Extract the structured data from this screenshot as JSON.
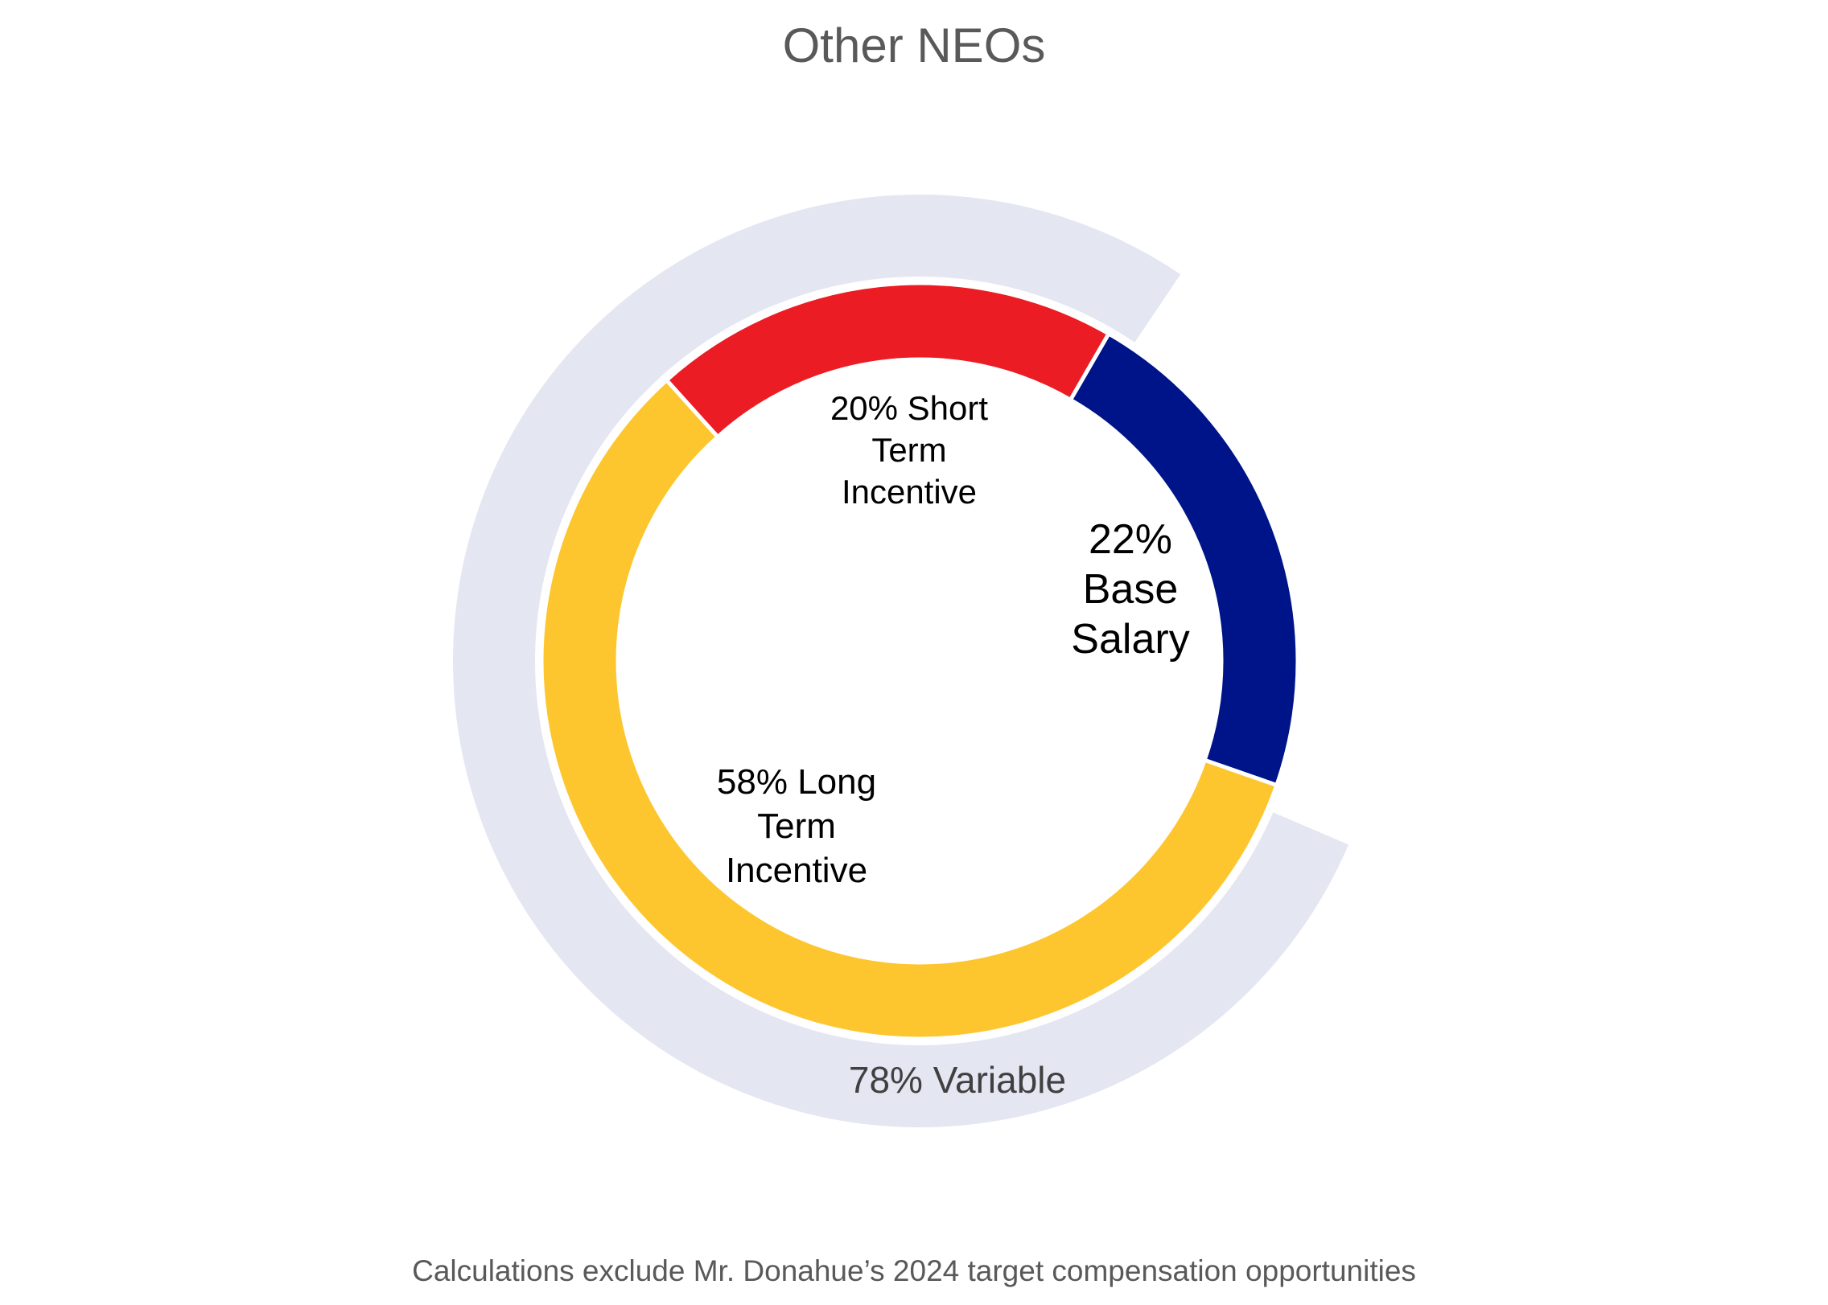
{
  "title": "Other NEOs",
  "footnote": "Calculations exclude Mr. Donahue’s 2024 target compensation opportunities",
  "labels": {
    "short_term": "20% Short\nTerm\nIncentive",
    "base_salary": "22%\nBase\nSalary",
    "long_term": "58% Long\nTerm\nIncentive",
    "variable": "78% Variable"
  },
  "colors": {
    "base_salary": "#00148A",
    "short_term": "#EC1C24",
    "long_term": "#FDC62E",
    "variable_ring": "#E4E6F2",
    "separator": "#FFFFFF"
  },
  "chart_data": {
    "type": "pie",
    "subtype": "nested-donut",
    "title": "Other NEOs",
    "inner_ring": {
      "categories": [
        "Base Salary",
        "Short Term Incentive",
        "Long Term Incentive"
      ],
      "values": [
        22,
        20,
        58
      ],
      "colors": [
        "#00148A",
        "#EC1C24",
        "#FDC62E"
      ],
      "labels": [
        "22% Base Salary",
        "20% Short Term Incentive",
        "58% Long Term Incentive"
      ]
    },
    "outer_ring": {
      "categories": [
        "Variable"
      ],
      "values": [
        78
      ],
      "colors": [
        "#E4E6F2"
      ],
      "labels": [
        "78% Variable"
      ]
    },
    "annotations": [
      "Calculations exclude Mr. Donahue’s 2024 target compensation opportunities"
    ],
    "legend": "none",
    "grid": false
  }
}
